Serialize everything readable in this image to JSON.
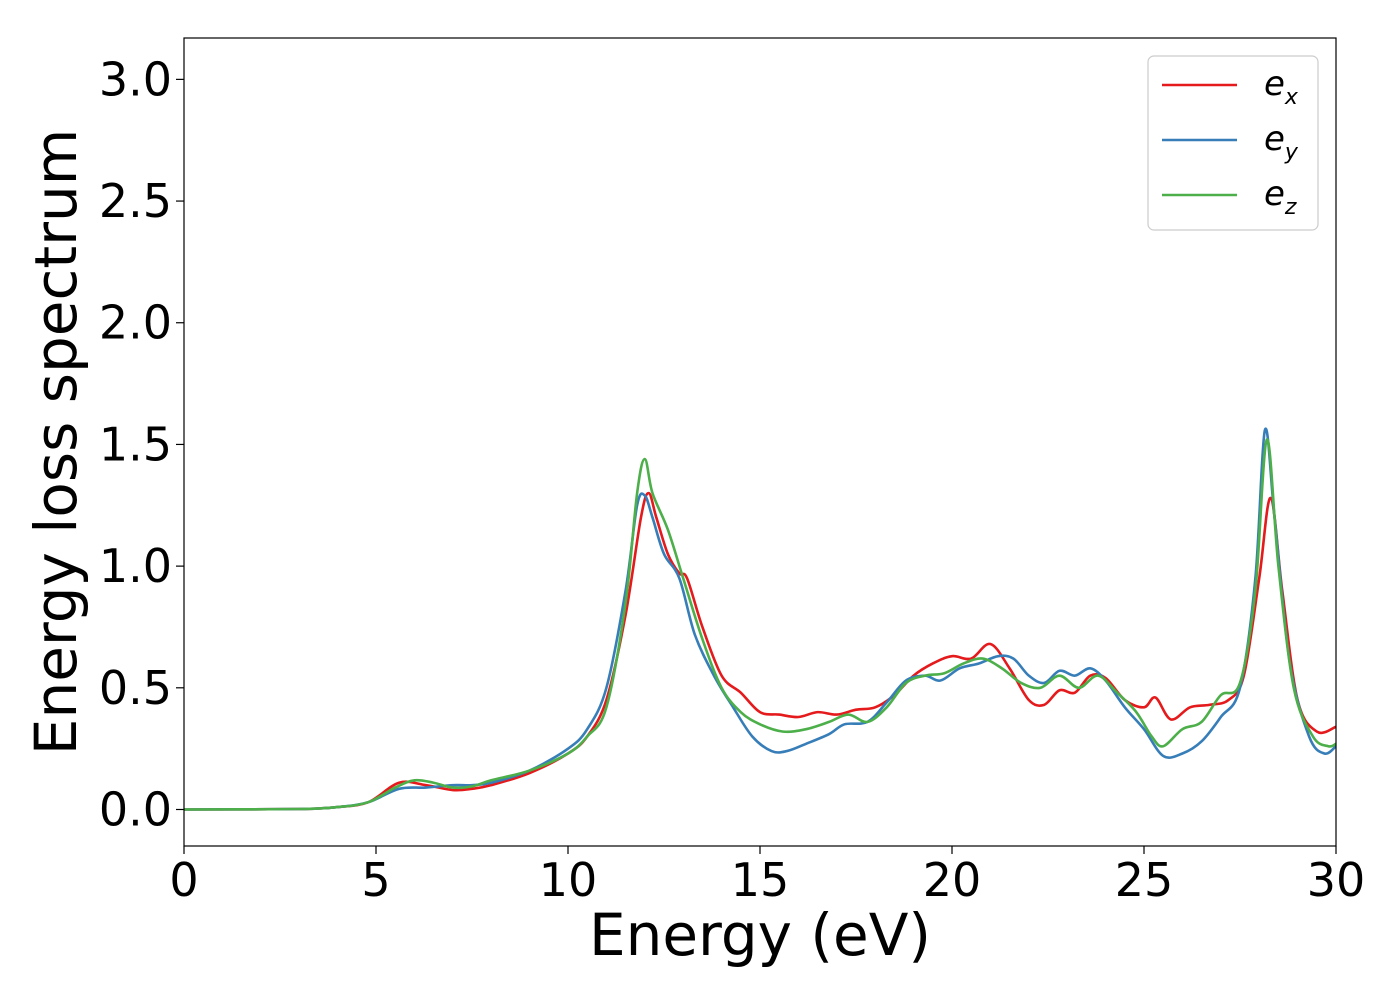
{
  "chart_data": {
    "type": "line",
    "title": "",
    "xlabel": "Energy (eV)",
    "ylabel": "Energy loss spectrum",
    "xlim": [
      0,
      30
    ],
    "ylim": [
      -0.15,
      3.17
    ],
    "xticks": [
      0,
      5,
      10,
      15,
      20,
      25,
      30
    ],
    "xtick_labels": [
      "0",
      "5",
      "10",
      "15",
      "20",
      "25",
      "30"
    ],
    "yticks": [
      0.0,
      0.5,
      1.0,
      1.5,
      2.0,
      2.5,
      3.0
    ],
    "ytick_labels": [
      "0.0",
      "0.5",
      "1.0",
      "1.5",
      "2.0",
      "2.5",
      "3.0"
    ],
    "grid": false,
    "legend_position": "top-right",
    "series": [
      {
        "name": "e_x",
        "legend_main": "e",
        "legend_sub": "x",
        "color": "#e41a1c",
        "points": [
          [
            0,
            0
          ],
          [
            3,
            0.002
          ],
          [
            4,
            0.01
          ],
          [
            4.8,
            0.03
          ],
          [
            5.6,
            0.11
          ],
          [
            6.3,
            0.1
          ],
          [
            7,
            0.08
          ],
          [
            7.5,
            0.085
          ],
          [
            8,
            0.1
          ],
          [
            9,
            0.15
          ],
          [
            10,
            0.23
          ],
          [
            10.5,
            0.3
          ],
          [
            11,
            0.45
          ],
          [
            11.5,
            0.8
          ],
          [
            11.9,
            1.2
          ],
          [
            12.1,
            1.3
          ],
          [
            12.3,
            1.2
          ],
          [
            12.6,
            1.05
          ],
          [
            12.9,
            0.97
          ],
          [
            13.1,
            0.95
          ],
          [
            13.5,
            0.75
          ],
          [
            14,
            0.55
          ],
          [
            14.5,
            0.48
          ],
          [
            15,
            0.4
          ],
          [
            15.5,
            0.39
          ],
          [
            16,
            0.38
          ],
          [
            16.5,
            0.4
          ],
          [
            17,
            0.39
          ],
          [
            17.5,
            0.41
          ],
          [
            18,
            0.42
          ],
          [
            18.5,
            0.47
          ],
          [
            19,
            0.55
          ],
          [
            19.5,
            0.6
          ],
          [
            20,
            0.63
          ],
          [
            20.5,
            0.62
          ],
          [
            21,
            0.68
          ],
          [
            21.5,
            0.58
          ],
          [
            22,
            0.45
          ],
          [
            22.4,
            0.43
          ],
          [
            22.8,
            0.49
          ],
          [
            23.2,
            0.48
          ],
          [
            23.6,
            0.55
          ],
          [
            24,
            0.54
          ],
          [
            24.5,
            0.45
          ],
          [
            25,
            0.42
          ],
          [
            25.3,
            0.46
          ],
          [
            25.7,
            0.37
          ],
          [
            26.2,
            0.42
          ],
          [
            26.7,
            0.43
          ],
          [
            27.2,
            0.45
          ],
          [
            27.6,
            0.55
          ],
          [
            28,
            0.95
          ],
          [
            28.3,
            1.28
          ],
          [
            28.6,
            0.9
          ],
          [
            29,
            0.45
          ],
          [
            29.5,
            0.32
          ],
          [
            30,
            0.34
          ]
        ]
      },
      {
        "name": "e_y",
        "legend_main": "e",
        "legend_sub": "y",
        "color": "#377eb8",
        "points": [
          [
            0,
            0
          ],
          [
            3,
            0.002
          ],
          [
            4,
            0.01
          ],
          [
            4.8,
            0.03
          ],
          [
            5.6,
            0.085
          ],
          [
            6.3,
            0.09
          ],
          [
            7,
            0.1
          ],
          [
            7.5,
            0.1
          ],
          [
            8,
            0.11
          ],
          [
            9,
            0.16
          ],
          [
            10,
            0.25
          ],
          [
            10.5,
            0.33
          ],
          [
            11,
            0.5
          ],
          [
            11.5,
            0.9
          ],
          [
            11.8,
            1.25
          ],
          [
            12,
            1.29
          ],
          [
            12.2,
            1.2
          ],
          [
            12.5,
            1.05
          ],
          [
            12.9,
            0.95
          ],
          [
            13.3,
            0.72
          ],
          [
            13.8,
            0.55
          ],
          [
            14.3,
            0.42
          ],
          [
            14.8,
            0.3
          ],
          [
            15.3,
            0.24
          ],
          [
            15.7,
            0.24
          ],
          [
            16.2,
            0.27
          ],
          [
            16.8,
            0.31
          ],
          [
            17.2,
            0.35
          ],
          [
            17.8,
            0.36
          ],
          [
            18.3,
            0.44
          ],
          [
            18.8,
            0.53
          ],
          [
            19.3,
            0.55
          ],
          [
            19.7,
            0.53
          ],
          [
            20.2,
            0.58
          ],
          [
            20.7,
            0.6
          ],
          [
            21.2,
            0.63
          ],
          [
            21.6,
            0.62
          ],
          [
            22,
            0.55
          ],
          [
            22.4,
            0.52
          ],
          [
            22.8,
            0.57
          ],
          [
            23.2,
            0.55
          ],
          [
            23.6,
            0.58
          ],
          [
            24,
            0.53
          ],
          [
            24.5,
            0.42
          ],
          [
            25,
            0.33
          ],
          [
            25.5,
            0.22
          ],
          [
            26,
            0.23
          ],
          [
            26.5,
            0.28
          ],
          [
            27,
            0.38
          ],
          [
            27.5,
            0.5
          ],
          [
            27.9,
            0.95
          ],
          [
            28.15,
            1.56
          ],
          [
            28.4,
            1.2
          ],
          [
            28.8,
            0.6
          ],
          [
            29.3,
            0.3
          ],
          [
            29.7,
            0.23
          ],
          [
            30,
            0.26
          ]
        ]
      },
      {
        "name": "e_z",
        "legend_main": "e",
        "legend_sub": "z",
        "color": "#4daf4a",
        "points": [
          [
            0,
            0
          ],
          [
            3,
            0.002
          ],
          [
            4,
            0.01
          ],
          [
            4.8,
            0.03
          ],
          [
            5.5,
            0.09
          ],
          [
            6,
            0.12
          ],
          [
            6.5,
            0.11
          ],
          [
            7,
            0.09
          ],
          [
            7.5,
            0.095
          ],
          [
            8,
            0.12
          ],
          [
            9,
            0.16
          ],
          [
            10,
            0.23
          ],
          [
            10.5,
            0.3
          ],
          [
            11,
            0.42
          ],
          [
            11.5,
            0.85
          ],
          [
            11.8,
            1.3
          ],
          [
            12,
            1.44
          ],
          [
            12.2,
            1.3
          ],
          [
            12.6,
            1.15
          ],
          [
            13,
            0.95
          ],
          [
            13.5,
            0.7
          ],
          [
            14,
            0.5
          ],
          [
            14.5,
            0.4
          ],
          [
            15,
            0.35
          ],
          [
            15.6,
            0.32
          ],
          [
            16.2,
            0.33
          ],
          [
            16.8,
            0.36
          ],
          [
            17.3,
            0.39
          ],
          [
            17.8,
            0.36
          ],
          [
            18.3,
            0.42
          ],
          [
            18.8,
            0.52
          ],
          [
            19.3,
            0.55
          ],
          [
            19.8,
            0.56
          ],
          [
            20.3,
            0.6
          ],
          [
            20.8,
            0.62
          ],
          [
            21.3,
            0.58
          ],
          [
            21.8,
            0.52
          ],
          [
            22.3,
            0.5
          ],
          [
            22.8,
            0.55
          ],
          [
            23.3,
            0.5
          ],
          [
            23.8,
            0.55
          ],
          [
            24.3,
            0.48
          ],
          [
            24.8,
            0.4
          ],
          [
            25.2,
            0.3
          ],
          [
            25.5,
            0.26
          ],
          [
            26,
            0.33
          ],
          [
            26.5,
            0.36
          ],
          [
            27,
            0.47
          ],
          [
            27.5,
            0.52
          ],
          [
            27.9,
            0.9
          ],
          [
            28.2,
            1.52
          ],
          [
            28.5,
            1.0
          ],
          [
            28.9,
            0.5
          ],
          [
            29.4,
            0.3
          ],
          [
            29.8,
            0.26
          ],
          [
            30,
            0.27
          ]
        ]
      }
    ]
  }
}
